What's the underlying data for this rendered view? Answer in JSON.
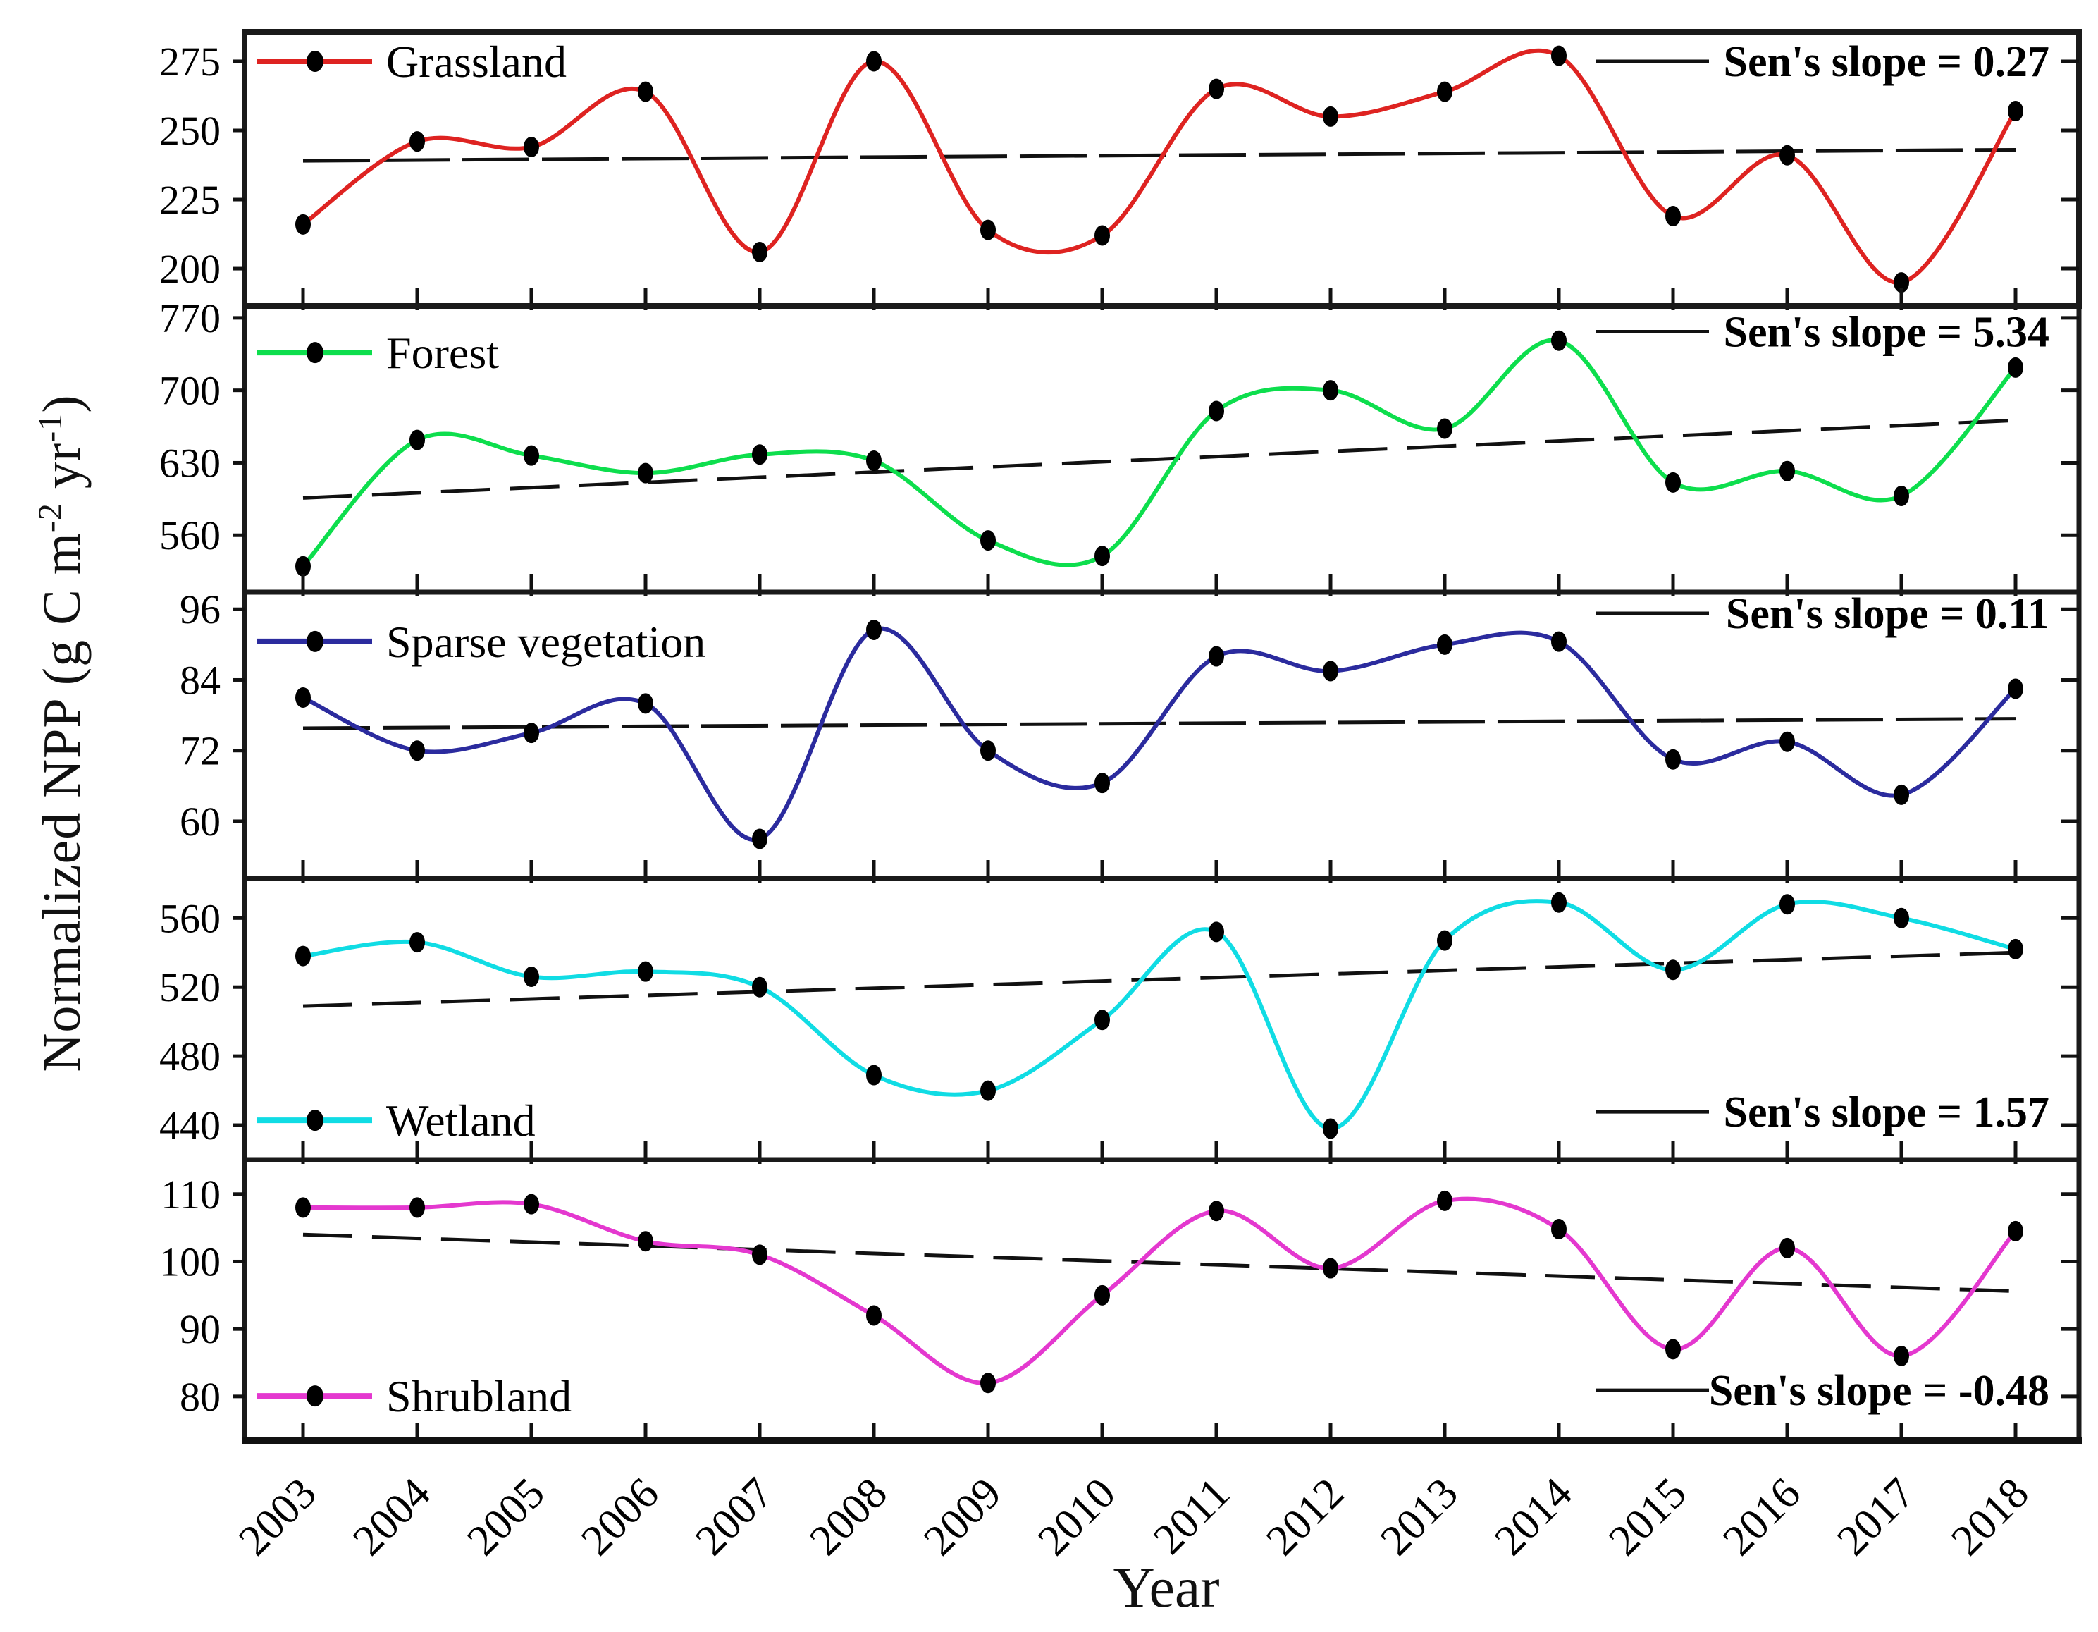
{
  "figure": {
    "xlabel": "Year",
    "ylabel_parts": [
      "Normalized NPP (g C m",
      "-2",
      " yr",
      "-1",
      ")"
    ]
  },
  "chart_data": {
    "type": "line",
    "title": "",
    "xlabel": "Year",
    "ylabel": "Normalized NPP (g C m-2 yr-1)",
    "x": [
      2003,
      2004,
      2005,
      2006,
      2007,
      2008,
      2009,
      2010,
      2011,
      2012,
      2013,
      2014,
      2015,
      2016,
      2017,
      2018
    ],
    "x_tick_labels": [
      "2003",
      "2004",
      "2005",
      "2006",
      "2007",
      "2008",
      "2009",
      "2010",
      "2011",
      "2012",
      "2013",
      "2014",
      "2015",
      "2016",
      "2017",
      "2018"
    ],
    "grid": "off",
    "marker_color": "#000000",
    "trend_color": "#111111",
    "panels": [
      {
        "name": "Grassland",
        "line_color": "#de2321",
        "ylim": [
          186.5,
          285.7
        ],
        "yticks": [
          200,
          225,
          250,
          275
        ],
        "values": [
          216,
          246,
          244,
          264,
          206,
          275,
          214,
          212,
          265,
          255,
          264,
          277,
          219,
          241,
          195,
          257
        ],
        "trend_start": 239,
        "trend_end": 243,
        "sen_label": "Sen's slope = 0.27",
        "sen_slope": 0.27,
        "legend_fy": 0.108,
        "sen_fy": 0.108,
        "trend_dash": "95 18",
        "legend_corner": "top-left",
        "sen_corner": "top-right"
      },
      {
        "name": "Forest",
        "line_color": "#0dde4d",
        "ylim": [
          505,
          781.5
        ],
        "yticks": [
          560,
          630,
          700,
          770
        ],
        "values": [
          530,
          652,
          637,
          620,
          638,
          632,
          555,
          540,
          680,
          700,
          663,
          748,
          611,
          622,
          598,
          722
        ],
        "trend_start": 596,
        "trend_end": 671,
        "sen_label": "Sen's slope = 5.34",
        "sen_slope": 5.34,
        "legend_fy": 0.163,
        "sen_fy": 0.09,
        "trend_dash": "70 28",
        "legend_corner": "top-left",
        "sen_corner": "top-right"
      },
      {
        "name": "Sparse vegetation",
        "line_color": "#2b2b9e",
        "ylim": [
          50.3,
          98.9
        ],
        "yticks": [
          60,
          72,
          84,
          96
        ],
        "values": [
          81,
          72,
          75,
          80,
          57,
          92.5,
          72,
          66.5,
          88,
          85.5,
          90,
          90.5,
          70.5,
          73.5,
          64.5,
          82.5
        ],
        "trend_start": 75.8,
        "trend_end": 77.4,
        "sen_label": "Sen's slope = 0.11",
        "sen_slope": 0.11,
        "legend_fy": 0.172,
        "sen_fy": 0.074,
        "trend_dash": "95 18",
        "legend_corner": "top-left",
        "sen_corner": "top-right"
      },
      {
        "name": "Wetland",
        "line_color": "#10dce4",
        "ylim": [
          420,
          583
        ],
        "yticks": [
          440,
          480,
          520,
          560
        ],
        "values": [
          538,
          546,
          526,
          529,
          520,
          469,
          460,
          501,
          552,
          438,
          547,
          569,
          530,
          568,
          560,
          542
        ],
        "trend_start": 509,
        "trend_end": 540,
        "sen_label": "Sen's slope = 1.57",
        "sen_slope": 1.57,
        "legend_fy": 0.86,
        "sen_fy": 0.83,
        "trend_dash": "70 28",
        "legend_corner": "bottom-left",
        "sen_corner": "bottom-right"
      },
      {
        "name": "Shrubland",
        "line_color": "#e438cf",
        "ylim": [
          73.4,
          115.1
        ],
        "yticks": [
          80,
          90,
          100,
          110
        ],
        "values": [
          108,
          108,
          108.5,
          103,
          101,
          92,
          82,
          95,
          107.5,
          99,
          109,
          104.8,
          87,
          102,
          86,
          104.5
        ],
        "trend_start": 104,
        "trend_end": 95.6,
        "sen_label": "Sen's slope = -0.48",
        "sen_slope": -0.48,
        "legend_fy": 0.84,
        "sen_fy": 0.82,
        "trend_dash": "70 28",
        "legend_corner": "bottom-left",
        "sen_corner": "bottom-right"
      }
    ]
  }
}
